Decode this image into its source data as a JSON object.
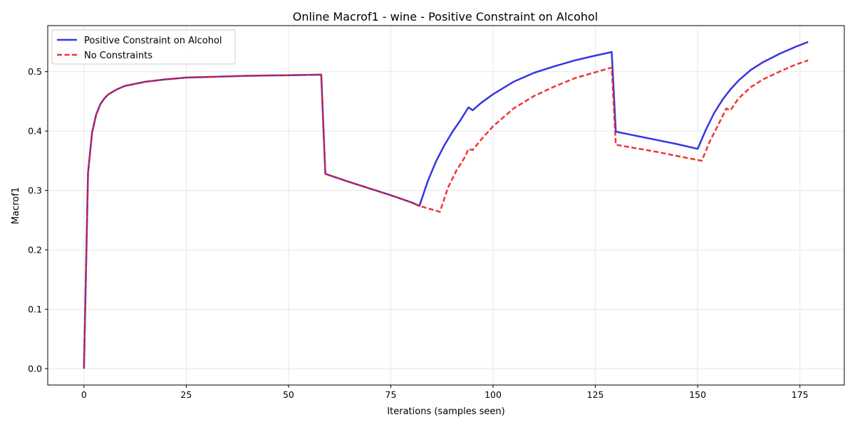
{
  "chart_data": {
    "type": "line",
    "title": "Online Macrof1 - wine - Positive Constraint on Alcohol",
    "xlabel": "Iterations (samples seen)",
    "ylabel": "Macrof1",
    "xlim": [
      -8.85,
      185.85
    ],
    "ylim": [
      -0.0275,
      0.5775
    ],
    "xticks": [
      0,
      25,
      50,
      75,
      100,
      125,
      150,
      175
    ],
    "yticks": [
      0.0,
      0.1,
      0.2,
      0.3,
      0.4,
      0.5
    ],
    "xtick_labels": [
      "0",
      "25",
      "50",
      "75",
      "100",
      "125",
      "150",
      "175"
    ],
    "ytick_labels": [
      "0.0",
      "0.1",
      "0.2",
      "0.3",
      "0.4",
      "0.5"
    ],
    "grid": true,
    "legend_position": "top-left",
    "series": [
      {
        "name": "Positive Constraint on Alcohol",
        "color": "#2020e0",
        "style": "solid",
        "points": [
          [
            0,
            0.0
          ],
          [
            1,
            0.33
          ],
          [
            2,
            0.398
          ],
          [
            3,
            0.428
          ],
          [
            4,
            0.445
          ],
          [
            5,
            0.455
          ],
          [
            6,
            0.462
          ],
          [
            8,
            0.47
          ],
          [
            10,
            0.476
          ],
          [
            15,
            0.483
          ],
          [
            20,
            0.487
          ],
          [
            25,
            0.49
          ],
          [
            30,
            0.491
          ],
          [
            40,
            0.493
          ],
          [
            50,
            0.494
          ],
          [
            58,
            0.495
          ],
          [
            59,
            0.328
          ],
          [
            65,
            0.314
          ],
          [
            70,
            0.303
          ],
          [
            75,
            0.292
          ],
          [
            80,
            0.28
          ],
          [
            82,
            0.274
          ],
          [
            84,
            0.315
          ],
          [
            86,
            0.348
          ],
          [
            88,
            0.375
          ],
          [
            90,
            0.398
          ],
          [
            92,
            0.418
          ],
          [
            94,
            0.44
          ],
          [
            95,
            0.435
          ],
          [
            97,
            0.447
          ],
          [
            100,
            0.462
          ],
          [
            105,
            0.483
          ],
          [
            110,
            0.498
          ],
          [
            115,
            0.509
          ],
          [
            120,
            0.519
          ],
          [
            125,
            0.527
          ],
          [
            129,
            0.533
          ],
          [
            130,
            0.399
          ],
          [
            135,
            0.392
          ],
          [
            140,
            0.385
          ],
          [
            145,
            0.378
          ],
          [
            150,
            0.37
          ],
          [
            152,
            0.402
          ],
          [
            154,
            0.43
          ],
          [
            156,
            0.452
          ],
          [
            158,
            0.47
          ],
          [
            160,
            0.485
          ],
          [
            163,
            0.503
          ],
          [
            166,
            0.516
          ],
          [
            170,
            0.53
          ],
          [
            174,
            0.542
          ],
          [
            177,
            0.55
          ]
        ]
      },
      {
        "name": "No Constraints",
        "color": "#ee2020",
        "style": "dashed",
        "points": [
          [
            0,
            0.0
          ],
          [
            1,
            0.33
          ],
          [
            2,
            0.398
          ],
          [
            3,
            0.428
          ],
          [
            4,
            0.445
          ],
          [
            5,
            0.455
          ],
          [
            6,
            0.462
          ],
          [
            8,
            0.47
          ],
          [
            10,
            0.476
          ],
          [
            15,
            0.483
          ],
          [
            20,
            0.487
          ],
          [
            25,
            0.49
          ],
          [
            30,
            0.491
          ],
          [
            40,
            0.493
          ],
          [
            50,
            0.494
          ],
          [
            58,
            0.495
          ],
          [
            59,
            0.328
          ],
          [
            65,
            0.314
          ],
          [
            70,
            0.303
          ],
          [
            75,
            0.292
          ],
          [
            80,
            0.28
          ],
          [
            82,
            0.274
          ],
          [
            87,
            0.264
          ],
          [
            89,
            0.305
          ],
          [
            91,
            0.333
          ],
          [
            93,
            0.355
          ],
          [
            94,
            0.37
          ],
          [
            95,
            0.368
          ],
          [
            97,
            0.385
          ],
          [
            100,
            0.408
          ],
          [
            105,
            0.438
          ],
          [
            110,
            0.459
          ],
          [
            115,
            0.475
          ],
          [
            120,
            0.489
          ],
          [
            125,
            0.499
          ],
          [
            128,
            0.505
          ],
          [
            129,
            0.507
          ],
          [
            130,
            0.377
          ],
          [
            135,
            0.371
          ],
          [
            140,
            0.365
          ],
          [
            145,
            0.358
          ],
          [
            151,
            0.35
          ],
          [
            153,
            0.383
          ],
          [
            155,
            0.41
          ],
          [
            157,
            0.438
          ],
          [
            158,
            0.435
          ],
          [
            160,
            0.455
          ],
          [
            163,
            0.474
          ],
          [
            166,
            0.487
          ],
          [
            170,
            0.5
          ],
          [
            174,
            0.512
          ],
          [
            177,
            0.519
          ]
        ]
      }
    ]
  }
}
